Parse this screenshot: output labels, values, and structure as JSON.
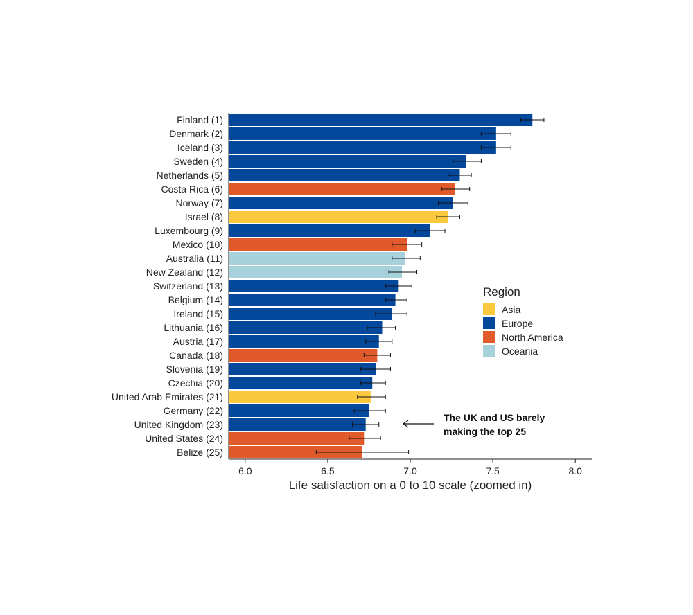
{
  "chart_data": {
    "type": "bar",
    "orientation": "horizontal",
    "xlabel": "Life satisfaction on a 0 to 10 scale (zoomed in)",
    "ylabel": "",
    "xlim": [
      5.9,
      8.1
    ],
    "xticks": [
      6.0,
      6.5,
      7.0,
      7.5,
      8.0
    ],
    "xtick_labels": [
      "6.0",
      "6.5",
      "7.0",
      "7.5",
      "8.0"
    ],
    "grid": false,
    "categories": [
      "Finland (1)",
      "Denmark (2)",
      "Iceland (3)",
      "Sweden (4)",
      "Netherlands (5)",
      "Costa Rica (6)",
      "Norway (7)",
      "Israel (8)",
      "Luxembourg (9)",
      "Mexico (10)",
      "Australia (11)",
      "New Zealand (12)",
      "Switzerland (13)",
      "Belgium (14)",
      "Ireland (15)",
      "Lithuania (16)",
      "Austria (17)",
      "Canada (18)",
      "Slovenia (19)",
      "Czechia (20)",
      "United Arab Emirates (21)",
      "Germany (22)",
      "United Kingdom (23)",
      "United States (24)",
      "Belize (25)"
    ],
    "values": [
      7.74,
      7.52,
      7.52,
      7.34,
      7.3,
      7.27,
      7.26,
      7.23,
      7.12,
      6.98,
      6.97,
      6.95,
      6.93,
      6.91,
      6.89,
      6.83,
      6.81,
      6.8,
      6.79,
      6.77,
      6.76,
      6.75,
      6.73,
      6.72,
      6.71
    ],
    "error_low": [
      7.67,
      7.43,
      7.43,
      7.26,
      7.23,
      7.19,
      7.17,
      7.16,
      7.03,
      6.89,
      6.89,
      6.87,
      6.85,
      6.85,
      6.79,
      6.74,
      6.73,
      6.72,
      6.7,
      6.7,
      6.68,
      6.66,
      6.65,
      6.63,
      6.43
    ],
    "error_high": [
      7.81,
      7.61,
      7.61,
      7.43,
      7.37,
      7.36,
      7.35,
      7.3,
      7.21,
      7.07,
      7.06,
      7.04,
      7.01,
      6.98,
      6.98,
      6.91,
      6.89,
      6.88,
      6.88,
      6.85,
      6.85,
      6.85,
      6.81,
      6.82,
      6.99
    ],
    "regions": [
      "Europe",
      "Europe",
      "Europe",
      "Europe",
      "Europe",
      "North America",
      "Europe",
      "Asia",
      "Europe",
      "North America",
      "Oceania",
      "Oceania",
      "Europe",
      "Europe",
      "Europe",
      "Europe",
      "Europe",
      "North America",
      "Europe",
      "Europe",
      "Asia",
      "Europe",
      "Europe",
      "North America",
      "North America"
    ],
    "legend": {
      "title": "Region",
      "position": "right",
      "entries": [
        {
          "name": "Asia",
          "color": "#FBC93D"
        },
        {
          "name": "Europe",
          "color": "#03489A"
        },
        {
          "name": "North America",
          "color": "#E05A2B"
        },
        {
          "name": "Oceania",
          "color": "#A7D1DB"
        }
      ]
    },
    "annotation": {
      "lines": [
        "The UK and US barely",
        "making the top 25"
      ]
    }
  }
}
